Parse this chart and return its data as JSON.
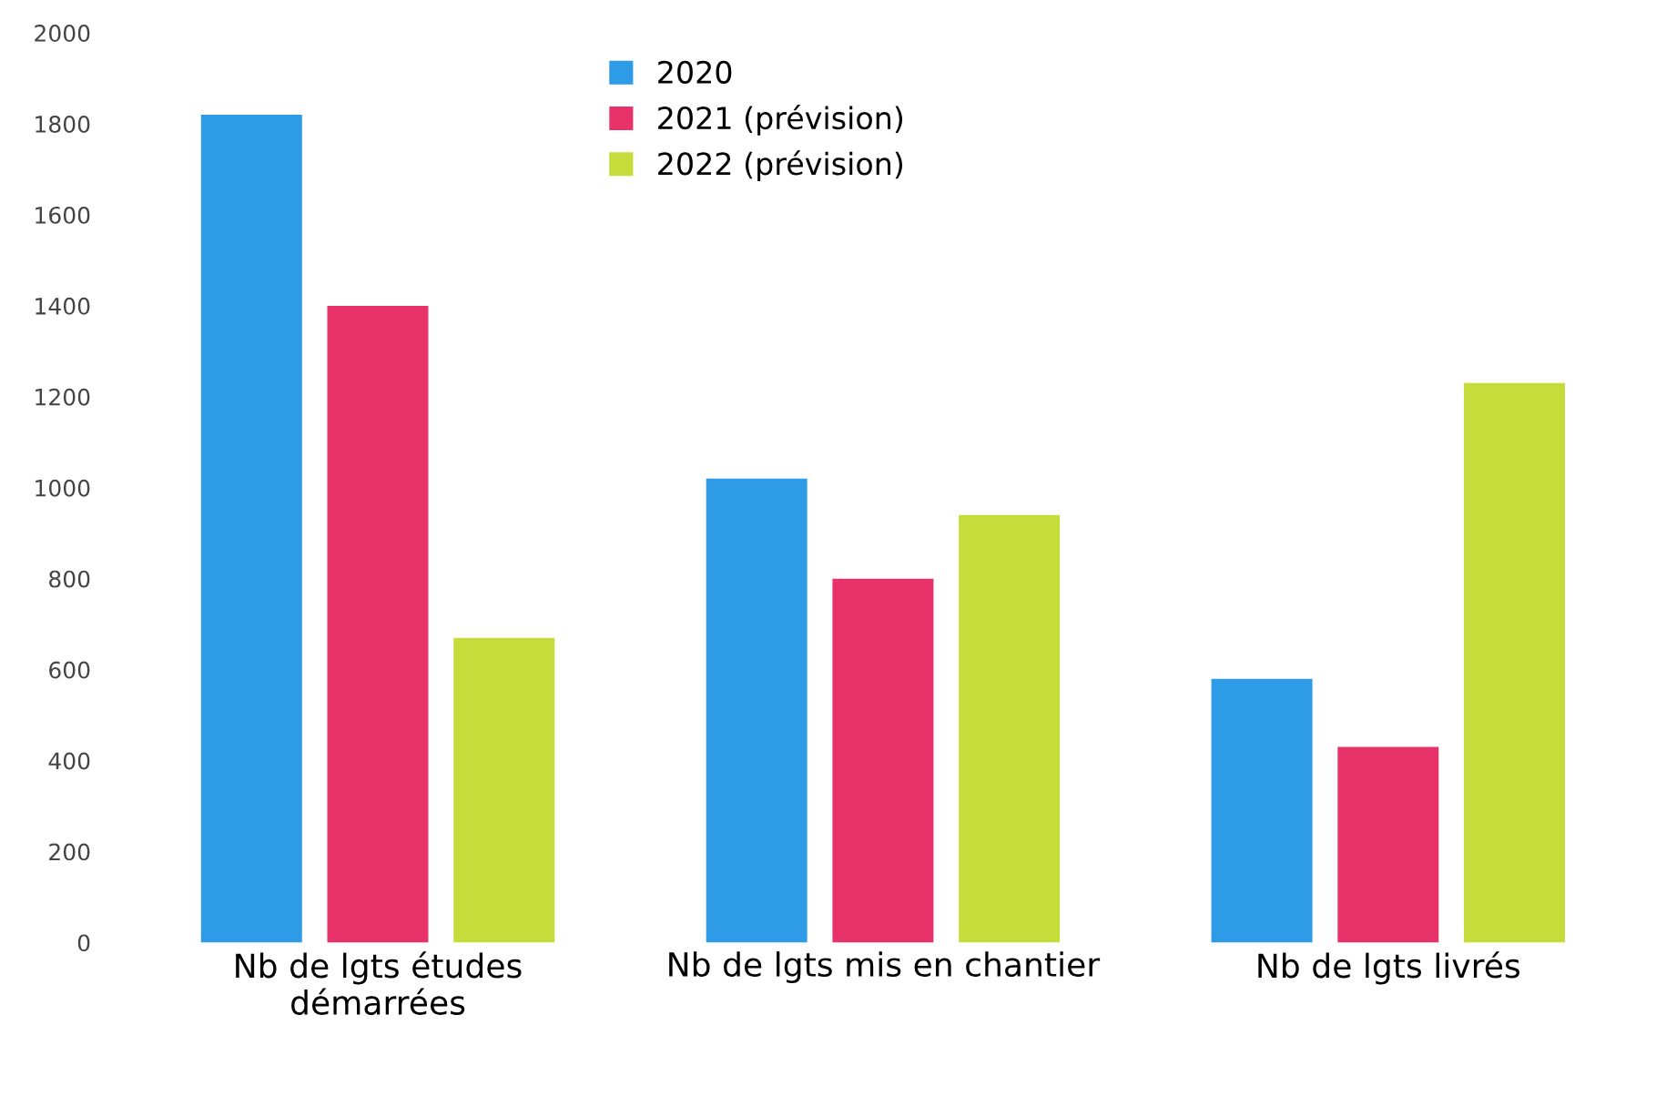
{
  "chart_data": {
    "type": "bar",
    "categories": [
      "Nb de lgts études\ndémarrées",
      "Nb de lgts mis en chantier",
      "Nb de lgts livrés"
    ],
    "series": [
      {
        "name": "2020",
        "color": "#2e9be6",
        "values": [
          1820,
          1020,
          580
        ]
      },
      {
        "name": "2021 (prévision)",
        "color": "#e8336a",
        "values": [
          1400,
          800,
          430
        ]
      },
      {
        "name": "2022 (prévision)",
        "color": "#c6dc3a",
        "values": [
          670,
          940,
          1230
        ]
      }
    ],
    "ylim": [
      0,
      2000
    ],
    "yticks": [
      0,
      200,
      400,
      600,
      800,
      1000,
      1200,
      1400,
      1600,
      1800,
      2000
    ],
    "grid": false,
    "legend": "top"
  }
}
